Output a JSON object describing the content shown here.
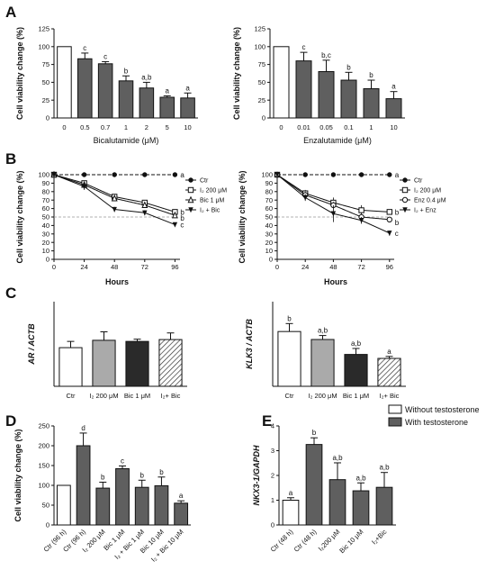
{
  "panel_labels": {
    "A": "A",
    "B": "B",
    "C": "C",
    "D": "D",
    "E": "E"
  },
  "chart_data": [
    {
      "id": "A1",
      "type": "bar",
      "ylabel": "Cell viability change (%)",
      "xlabel": "Bicalutamide (μM)",
      "ylim": [
        0,
        125
      ],
      "yticks": [
        0,
        25,
        50,
        75,
        100,
        125
      ],
      "categories": [
        "0",
        "0.5",
        "0.7",
        "1",
        "2",
        "5",
        "10"
      ],
      "values": [
        100,
        83,
        76,
        52,
        42,
        29,
        28
      ],
      "errors": [
        0,
        8,
        3,
        7,
        8,
        2,
        7
      ],
      "annotations": [
        "",
        "c",
        "c",
        "b",
        "a,b",
        "a",
        "a"
      ],
      "colors": [
        "#ffffff",
        "#5f5f5f",
        "#5f5f5f",
        "#5f5f5f",
        "#5f5f5f",
        "#5f5f5f",
        "#5f5f5f"
      ]
    },
    {
      "id": "A2",
      "type": "bar",
      "ylabel": "Cell viability change (%)",
      "xlabel": "Enzalutamide (μM)",
      "ylim": [
        0,
        125
      ],
      "yticks": [
        0,
        25,
        50,
        75,
        100,
        125
      ],
      "categories": [
        "0",
        "0.01",
        "0.05",
        "0.1",
        "1",
        "10"
      ],
      "values": [
        100,
        80,
        65,
        53,
        41,
        27
      ],
      "errors": [
        0,
        12,
        16,
        11,
        12,
        10
      ],
      "annotations": [
        "",
        "c",
        "b,c",
        "b",
        "b",
        "a"
      ],
      "colors": [
        "#ffffff",
        "#5f5f5f",
        "#5f5f5f",
        "#5f5f5f",
        "#5f5f5f",
        "#5f5f5f"
      ]
    },
    {
      "id": "B1",
      "type": "line",
      "ylabel": "Cell viability change (%)",
      "xlabel": "Hours",
      "xlim": [
        0,
        100
      ],
      "xticks": [
        0,
        24,
        48,
        72,
        96
      ],
      "ylim": [
        0,
        100
      ],
      "yticks": [
        0,
        10,
        20,
        30,
        40,
        50,
        60,
        70,
        80,
        90,
        100
      ],
      "reference_line": 50,
      "series": [
        {
          "name": "Ctr",
          "marker": "circle-filled",
          "x": [
            0,
            24,
            48,
            72,
            96
          ],
          "y": [
            100,
            100,
            100,
            100,
            100
          ],
          "err": [
            0,
            0,
            0,
            0,
            0
          ],
          "letter": "a"
        },
        {
          "name": "I₂ 200 μM",
          "marker": "square-open",
          "x": [
            0,
            24,
            48,
            72,
            96
          ],
          "y": [
            100,
            90,
            74,
            67,
            56
          ],
          "err": [
            0,
            3,
            3,
            3,
            3
          ],
          "letter": "b"
        },
        {
          "name": "Bic 1 μM",
          "marker": "triangle-up-open",
          "x": [
            0,
            24,
            48,
            72,
            96
          ],
          "y": [
            100,
            88,
            72,
            64,
            52
          ],
          "err": [
            0,
            3,
            3,
            3,
            3
          ],
          "letter": "b"
        },
        {
          "name": "I₂ + Bic",
          "marker": "triangle-down-filled",
          "x": [
            0,
            24,
            48,
            72,
            96
          ],
          "y": [
            100,
            86,
            59,
            55,
            41
          ],
          "err": [
            0,
            4,
            3,
            3,
            2
          ],
          "letter": "c"
        }
      ]
    },
    {
      "id": "B2",
      "type": "line",
      "ylabel": "Cell viability change (%)",
      "xlabel": "Hours",
      "xlim": [
        0,
        100
      ],
      "xticks": [
        0,
        24,
        48,
        72,
        96
      ],
      "ylim": [
        0,
        100
      ],
      "yticks": [
        0,
        10,
        20,
        30,
        40,
        50,
        60,
        70,
        80,
        90,
        100
      ],
      "reference_line": 50,
      "series": [
        {
          "name": "Ctr",
          "marker": "circle-filled",
          "x": [
            0,
            24,
            48,
            72,
            96
          ],
          "y": [
            100,
            100,
            100,
            100,
            100
          ],
          "err": [
            0,
            0,
            0,
            0,
            0
          ],
          "letter": "a"
        },
        {
          "name": "I₂ 200 μM",
          "marker": "square-open",
          "x": [
            0,
            24,
            48,
            72,
            96
          ],
          "y": [
            100,
            78,
            67,
            58,
            56
          ],
          "err": [
            0,
            4,
            6,
            6,
            3
          ],
          "letter": "b"
        },
        {
          "name": "Enz 0.4 μM",
          "marker": "circle-open",
          "x": [
            0,
            24,
            48,
            72,
            96
          ],
          "y": [
            100,
            76,
            64,
            50,
            47
          ],
          "err": [
            0,
            4,
            4,
            4,
            3
          ],
          "letter": "b"
        },
        {
          "name": "I₂ + Enz",
          "marker": "triangle-down-filled",
          "x": [
            0,
            24,
            48,
            72,
            96
          ],
          "y": [
            100,
            73,
            54,
            46,
            31
          ],
          "err": [
            0,
            4,
            10,
            4,
            3
          ],
          "letter": "c"
        }
      ]
    },
    {
      "id": "C1",
      "type": "bar",
      "ylabel": "AR / ACTB",
      "ylim": [
        0,
        2.3
      ],
      "yticks": [],
      "categories": [
        "Ctr",
        "I₂ 200 μM",
        "Bic 1 μM",
        "I₂+ Bic"
      ],
      "values": [
        1.05,
        1.25,
        1.22,
        1.27
      ],
      "errors": [
        0.17,
        0.23,
        0.06,
        0.18
      ],
      "annotations": [
        "",
        "",
        "",
        ""
      ],
      "colors": [
        "#ffffff",
        "#aaaaaa",
        "#2a2a2a",
        "hatch"
      ]
    },
    {
      "id": "C2",
      "type": "bar",
      "ylabel": "KLK3 / ACTB",
      "ylim": [
        0,
        8.5
      ],
      "yticks": [],
      "categories": [
        "Ctr",
        "I₂ 200 μM",
        "Bic 1 μM",
        "I₂+ Bic"
      ],
      "values": [
        5.5,
        4.7,
        3.2,
        2.8
      ],
      "errors": [
        0.8,
        0.4,
        0.6,
        0.2
      ],
      "annotations": [
        "b",
        "a,b",
        "a,b",
        "a"
      ],
      "colors": [
        "#ffffff",
        "#aaaaaa",
        "#2a2a2a",
        "hatch"
      ]
    },
    {
      "id": "D",
      "type": "bar",
      "ylabel": "Cell viability change (%)",
      "ylim": [
        0,
        250
      ],
      "yticks": [
        0,
        50,
        100,
        150,
        200,
        250
      ],
      "categories": [
        "Ctr (96 h)",
        "Ctr (96 h)",
        "I₂ 200 μM",
        "Bic 1 μM",
        "I₂ + Bic 1 μM",
        "Bic 10 μM",
        "I₂ + Bic 10 μM"
      ],
      "values": [
        100,
        200,
        93,
        142,
        95,
        99,
        55
      ],
      "errors": [
        0,
        32,
        15,
        7,
        18,
        22,
        6
      ],
      "annotations": [
        "",
        "d",
        "b",
        "c",
        "b",
        "b",
        "a"
      ],
      "colors": [
        "#ffffff",
        "#5f5f5f",
        "#5f5f5f",
        "#5f5f5f",
        "#5f5f5f",
        "#5f5f5f",
        "#5f5f5f"
      ]
    },
    {
      "id": "E",
      "type": "bar",
      "ylabel": "NKX3-1/GAPDH",
      "ylim": [
        0,
        4
      ],
      "yticks": [
        0,
        1,
        2,
        3,
        4
      ],
      "categories": [
        "Ctr (48 h)",
        "Ctr (48 h)",
        "I₂200 μM",
        "Bic 10 μM",
        "I₂+Bic"
      ],
      "values": [
        1.0,
        3.25,
        1.83,
        1.38,
        1.52
      ],
      "errors": [
        0.1,
        0.27,
        0.68,
        0.32,
        0.6
      ],
      "annotations": [
        "a",
        "b",
        "a,b",
        "a,b",
        "a,b"
      ],
      "colors": [
        "#ffffff",
        "#5f5f5f",
        "#5f5f5f",
        "#5f5f5f",
        "#5f5f5f"
      ],
      "legend": [
        {
          "label": "Without testosterone",
          "color": "#ffffff"
        },
        {
          "label": "With testosterone",
          "color": "#5f5f5f"
        }
      ]
    }
  ]
}
